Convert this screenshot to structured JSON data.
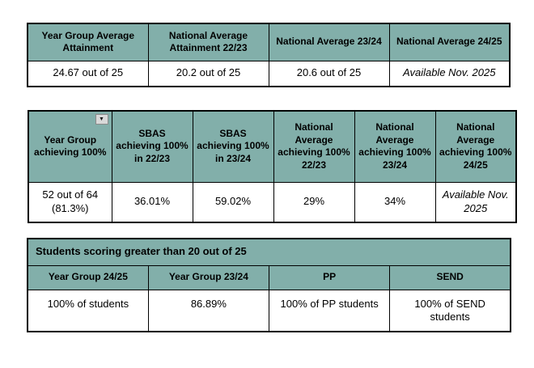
{
  "colors": {
    "header_bg": "#82AFAA",
    "border": "#000000",
    "filter_button_bg": "#D9D9D9"
  },
  "table1": {
    "headers": [
      "Year Group Average Attainment",
      "National Average Attainment  22/23",
      "National Average 23/24",
      "National Average 24/25"
    ],
    "values": [
      "24.67 out of 25",
      "20.2 out of 25",
      "20.6 out of 25",
      "Available Nov. 2025"
    ]
  },
  "table2": {
    "filter_icon_glyph": "▼",
    "headers": [
      "Year Group achieving 100%",
      "SBAS achieving 100% in 22/23",
      "SBAS achieving 100% in 23/24",
      "National Average achieving 100% 22/23",
      "National Average achieving 100% 23/24",
      "National Average achieving 100% 24/25"
    ],
    "values": [
      "52 out of 64 (81.3%)",
      "36.01%",
      "59.02%",
      "29%",
      "34%",
      "Available Nov. 2025"
    ]
  },
  "table3": {
    "title": "Students scoring greater than 20 out of 25",
    "headers": [
      "Year Group 24/25",
      "Year Group 23/24",
      "PP",
      "SEND"
    ],
    "values": [
      "100% of students",
      "86.89%",
      "100% of PP students",
      "100% of SEND students"
    ]
  }
}
